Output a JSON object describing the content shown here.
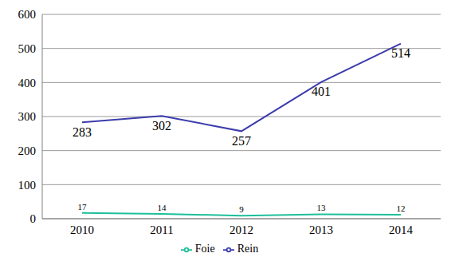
{
  "chart_data": {
    "type": "line",
    "categories": [
      "2010",
      "2011",
      "2012",
      "2013",
      "2014"
    ],
    "series": [
      {
        "name": "Foie",
        "color": "#1dbf9b",
        "values": [
          17,
          14,
          9,
          13,
          12
        ]
      },
      {
        "name": "Rein",
        "color": "#3c3cad",
        "values": [
          283,
          302,
          257,
          401,
          514
        ]
      }
    ],
    "ylim": [
      0,
      600
    ],
    "yticks": [
      0,
      100,
      200,
      300,
      400,
      500,
      600
    ],
    "grid": true,
    "legend": "bottom",
    "data_labels": true
  }
}
